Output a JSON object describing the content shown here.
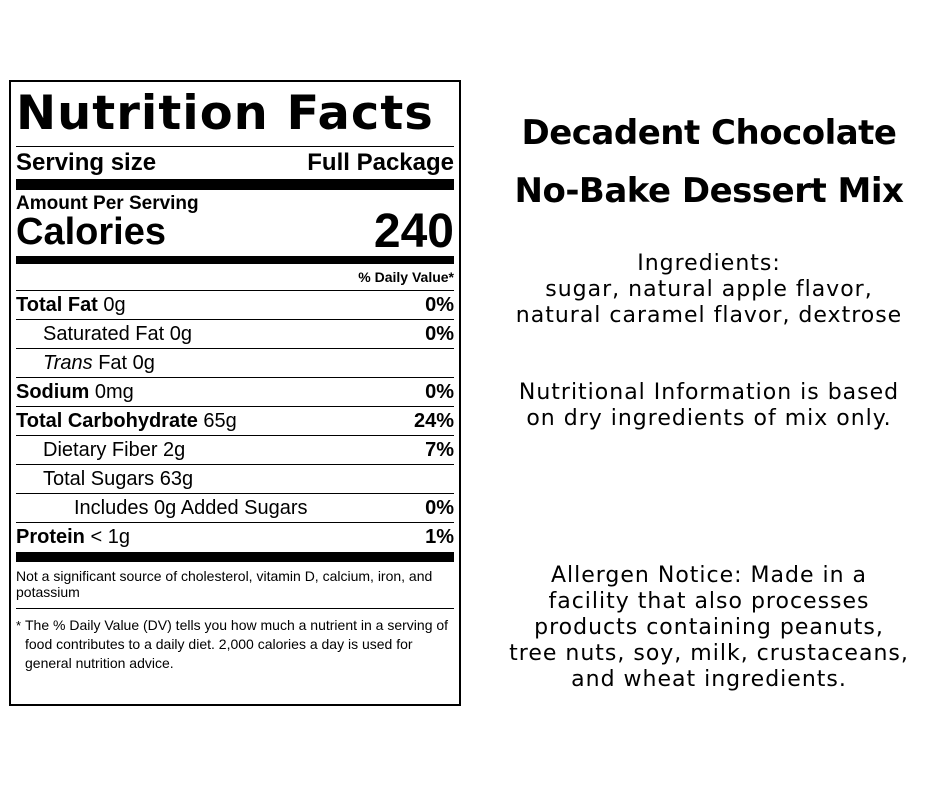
{
  "label": {
    "title": "Nutrition Facts",
    "serving_label": "Serving size",
    "serving_value": "Full Package",
    "amount_per_serving": "Amount Per Serving",
    "calories_label": "Calories",
    "calories_value": "240",
    "dv_header": "% Daily Value*",
    "rows": [
      {
        "bold": "Total Fat",
        "rest": " 0g",
        "italic": "",
        "pct": "0%"
      },
      {
        "bold": "",
        "rest": "Saturated Fat 0g",
        "italic": "",
        "pct": "0%"
      },
      {
        "bold": "",
        "rest": " Fat 0g",
        "italic": "Trans",
        "pct": ""
      },
      {
        "bold": "Sodium",
        "rest": " 0mg",
        "italic": "",
        "pct": "0%"
      },
      {
        "bold": "Total Carbohydrate",
        "rest": " 65g",
        "italic": "",
        "pct": "24%"
      },
      {
        "bold": "",
        "rest": "Dietary Fiber 2g",
        "italic": "",
        "pct": "7%"
      },
      {
        "bold": "",
        "rest": "Total Sugars 63g",
        "italic": "",
        "pct": ""
      },
      {
        "bold": "",
        "rest": "Includes 0g Added Sugars",
        "italic": "",
        "pct": "0%"
      },
      {
        "bold": "Protein",
        "rest": " < 1g",
        "italic": "",
        "pct": "1%"
      }
    ],
    "not_significant": "Not a significant source of cholesterol, vitamin D, calcium, iron, and potassium",
    "footnote_mark": "*",
    "footnote": "The % Daily Value (DV) tells you how much a nutrient in a serving of food contributes to a daily diet. 2,000 calories a day is used for general nutrition advice."
  },
  "product": {
    "title_line1": "Decadent Chocolate",
    "title_line2": "No-Bake Dessert Mix",
    "ingredients_label": "Ingredients:",
    "ingredients_line1": "sugar, natural apple flavor,",
    "ingredients_line2": "natural caramel flavor, dextrose",
    "nutrition_line1": "Nutritional Information is based",
    "nutrition_line2": "on dry ingredients of mix only.",
    "allergen_line1": "Allergen Notice: Made in a",
    "allergen_line2": "facility that also processes",
    "allergen_line3": "products containing peanuts,",
    "allergen_line4": "tree nuts, soy, milk, crustaceans,",
    "allergen_line5": "and wheat ingredients."
  }
}
